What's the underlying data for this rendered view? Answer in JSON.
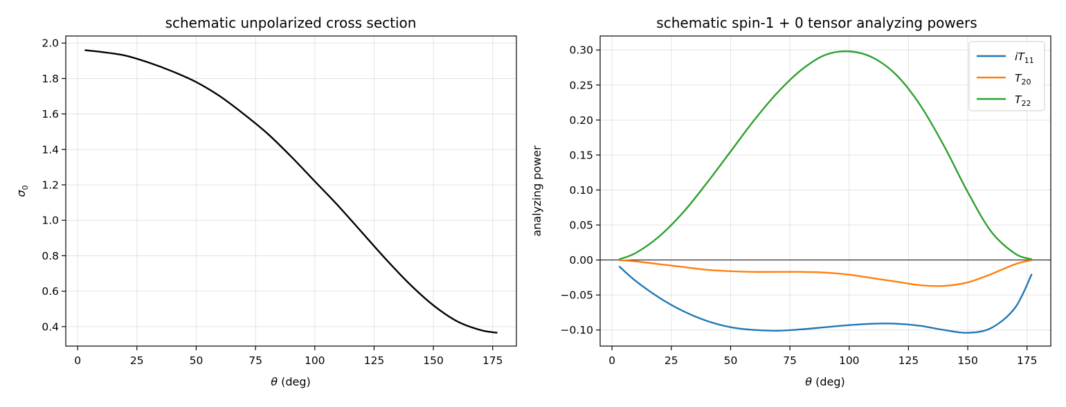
{
  "chart_data": [
    {
      "type": "line",
      "title": "schematic unpolarized cross section",
      "xlabel_var": "θ",
      "xlabel_unit": " (deg)",
      "ylabel_var": "σ",
      "ylabel_sub": "0",
      "xlim": [
        -5,
        185
      ],
      "ylim": [
        0.29,
        2.04
      ],
      "xticks": [
        0,
        25,
        50,
        75,
        100,
        125,
        150,
        175
      ],
      "yticks": [
        0.4,
        0.6,
        0.8,
        1.0,
        1.2,
        1.4,
        1.6,
        1.8,
        2.0
      ],
      "xtick_labels": [
        "0",
        "25",
        "50",
        "75",
        "100",
        "125",
        "150",
        "175"
      ],
      "ytick_labels": [
        "0.4",
        "0.6",
        "0.8",
        "1.0",
        "1.2",
        "1.4",
        "1.6",
        "1.8",
        "2.0"
      ],
      "grid": true,
      "series": [
        {
          "color": "#000000",
          "x": [
            3,
            10,
            20,
            30,
            40,
            50,
            60,
            70,
            80,
            90,
            100,
            110,
            120,
            130,
            140,
            150,
            160,
            170,
            177
          ],
          "y": [
            1.96,
            1.95,
            1.93,
            1.89,
            1.84,
            1.78,
            1.7,
            1.6,
            1.49,
            1.36,
            1.22,
            1.08,
            0.93,
            0.78,
            0.64,
            0.52,
            0.43,
            0.38,
            0.365
          ]
        }
      ]
    },
    {
      "type": "line",
      "title": "schematic spin-1 + 0 tensor analyzing powers",
      "xlabel_var": "θ",
      "xlabel_unit": " (deg)",
      "ylabel": "analyzing power",
      "xlim": [
        -5,
        185
      ],
      "ylim": [
        -0.123,
        0.32
      ],
      "xticks": [
        0,
        25,
        50,
        75,
        100,
        125,
        150,
        175
      ],
      "yticks": [
        -0.1,
        -0.05,
        0.0,
        0.05,
        0.1,
        0.15,
        0.2,
        0.25,
        0.3
      ],
      "xtick_labels": [
        "0",
        "25",
        "50",
        "75",
        "100",
        "125",
        "150",
        "175"
      ],
      "ytick_labels": [
        "−0.10",
        "−0.05",
        "0.00",
        "0.05",
        "0.10",
        "0.15",
        "0.20",
        "0.25",
        "0.30"
      ],
      "grid": true,
      "zero_line": true,
      "legend_position": "top-right",
      "series": [
        {
          "name_pre": "i",
          "name_main": "T",
          "name_sub": "11",
          "color": "#1f77b4",
          "x": [
            3,
            10,
            20,
            30,
            40,
            50,
            60,
            70,
            80,
            90,
            100,
            110,
            120,
            130,
            140,
            150,
            160,
            170,
            177
          ],
          "y": [
            -0.009,
            -0.03,
            -0.054,
            -0.073,
            -0.087,
            -0.096,
            -0.1,
            -0.101,
            -0.099,
            -0.096,
            -0.093,
            -0.091,
            -0.091,
            -0.094,
            -0.1,
            -0.104,
            -0.097,
            -0.068,
            -0.02
          ]
        },
        {
          "name_main": "T",
          "name_sub": "20",
          "color": "#ff7f0e",
          "x": [
            3,
            10,
            20,
            30,
            40,
            50,
            60,
            70,
            80,
            90,
            100,
            110,
            120,
            130,
            140,
            150,
            160,
            170,
            177
          ],
          "y": [
            -0.0002,
            -0.002,
            -0.006,
            -0.01,
            -0.014,
            -0.016,
            -0.017,
            -0.017,
            -0.017,
            -0.018,
            -0.021,
            -0.026,
            -0.031,
            -0.036,
            -0.037,
            -0.032,
            -0.02,
            -0.006,
            -0.0002
          ]
        },
        {
          "name_main": "T",
          "name_sub": "22",
          "color": "#2ca02c",
          "x": [
            3,
            10,
            20,
            30,
            40,
            50,
            60,
            70,
            80,
            90,
            100,
            110,
            120,
            130,
            140,
            150,
            160,
            170,
            177
          ],
          "y": [
            0.001,
            0.01,
            0.034,
            0.068,
            0.11,
            0.155,
            0.2,
            0.24,
            0.272,
            0.293,
            0.298,
            0.289,
            0.264,
            0.221,
            0.163,
            0.097,
            0.04,
            0.009,
            0.001
          ]
        }
      ]
    }
  ]
}
